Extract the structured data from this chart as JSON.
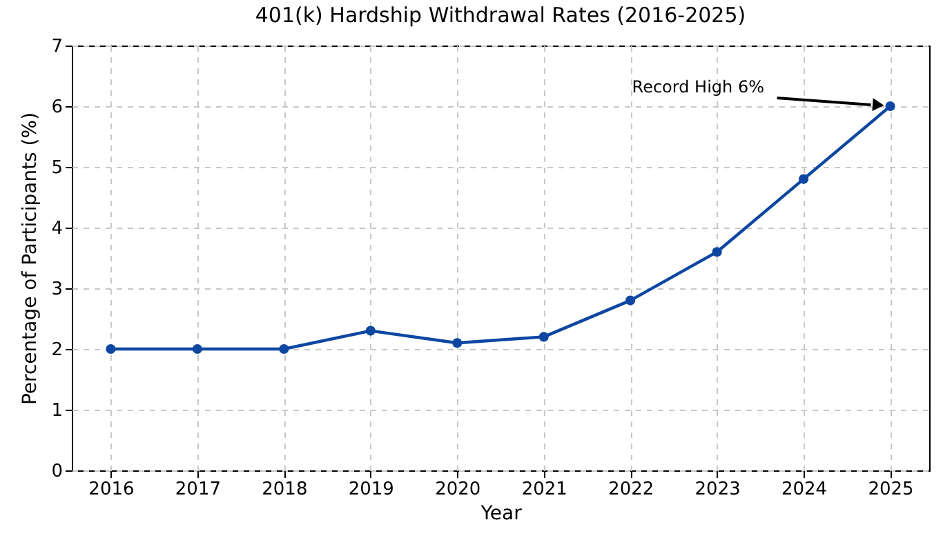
{
  "chart_data": {
    "type": "line",
    "title": "401(k) Hardship Withdrawal Rates (2016-2025)",
    "xlabel": "Year",
    "ylabel": "Percentage of Participants (%)",
    "x": [
      2016,
      2017,
      2018,
      2019,
      2020,
      2021,
      2022,
      2023,
      2024,
      2025
    ],
    "series": [
      {
        "color": "#0d47a1",
        "values": [
          2.0,
          2.0,
          2.0,
          2.3,
          2.1,
          2.2,
          2.8,
          3.6,
          4.8,
          6.0
        ]
      }
    ],
    "xlim": [
      2015.55,
      2025.45
    ],
    "xticks": [
      2016,
      2017,
      2018,
      2019,
      2020,
      2021,
      2022,
      2023,
      2024,
      2025
    ],
    "ylim": [
      0,
      7
    ],
    "yticks": [
      0,
      1,
      2,
      3,
      4,
      5,
      6,
      7
    ],
    "annotations": [
      "Record High 6%"
    ],
    "grid": true,
    "marker": "circle",
    "line_style": "solid"
  }
}
